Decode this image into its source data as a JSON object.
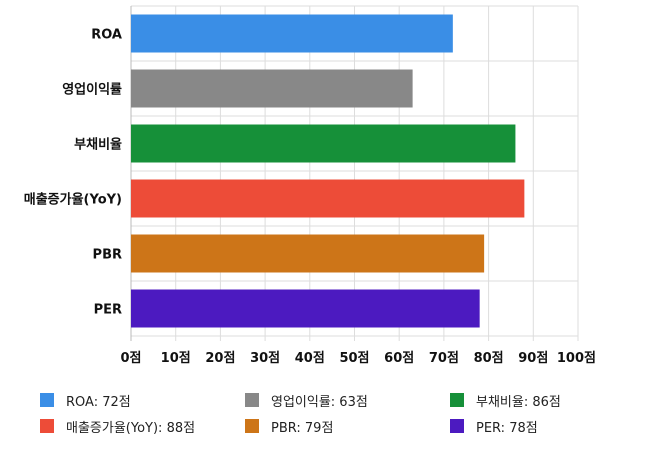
{
  "chart_data": {
    "type": "bar",
    "orientation": "horizontal",
    "categories": [
      "ROA",
      "영업이익률",
      "부채비율",
      "매출증가율(YoY)",
      "PBR",
      "PER"
    ],
    "values": [
      72,
      63,
      86,
      88,
      79,
      78
    ],
    "colors": [
      "#3a8ee6",
      "#888888",
      "#169039",
      "#ed4c38",
      "#cd7518",
      "#4c1ac0"
    ],
    "xlim": [
      0,
      100
    ],
    "x_ticks": [
      "0점",
      "10점",
      "20점",
      "30점",
      "40점",
      "50점",
      "60점",
      "70점",
      "80점",
      "90점",
      "100점"
    ],
    "grid": true,
    "legend_position": "bottom",
    "legend": [
      {
        "label": "ROA: 72점",
        "color": "#3a8ee6"
      },
      {
        "label": "영업이익률: 63점",
        "color": "#888888"
      },
      {
        "label": "부채비율: 86점",
        "color": "#169039"
      },
      {
        "label": "매출증가율(YoY): 88점",
        "color": "#ed4c38"
      },
      {
        "label": "PBR: 79점",
        "color": "#cd7518"
      },
      {
        "label": "PER: 78점",
        "color": "#4c1ac0"
      }
    ]
  }
}
